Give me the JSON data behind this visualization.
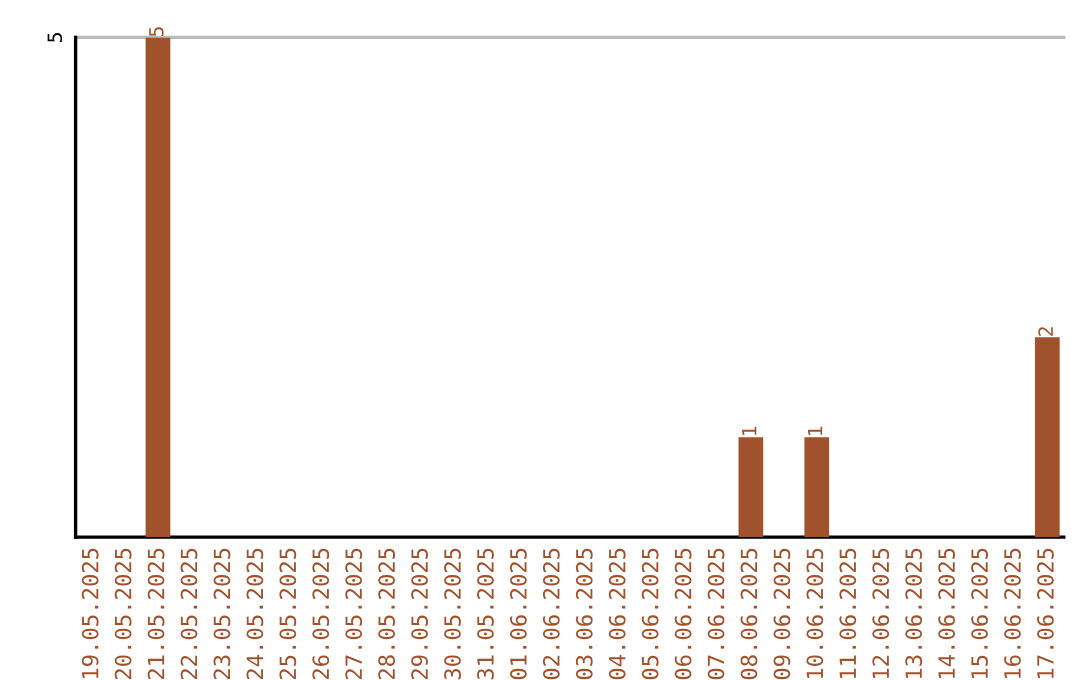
{
  "chart_data": {
    "type": "bar",
    "categories": [
      "19.05.2025",
      "20.05.2025",
      "21.05.2025",
      "22.05.2025",
      "23.05.2025",
      "24.05.2025",
      "25.05.2025",
      "26.05.2025",
      "27.05.2025",
      "28.05.2025",
      "29.05.2025",
      "30.05.2025",
      "31.05.2025",
      "01.06.2025",
      "02.06.2025",
      "03.06.2025",
      "04.06.2025",
      "05.06.2025",
      "06.06.2025",
      "07.06.2025",
      "08.06.2025",
      "09.06.2025",
      "10.06.2025",
      "11.06.2025",
      "12.06.2025",
      "13.06.2025",
      "14.06.2025",
      "15.06.2025",
      "16.06.2025",
      "17.06.2025"
    ],
    "values": [
      0,
      0,
      5,
      0,
      0,
      0,
      0,
      0,
      0,
      0,
      0,
      0,
      0,
      0,
      0,
      0,
      0,
      0,
      0,
      0,
      1,
      0,
      1,
      0,
      0,
      0,
      0,
      0,
      0,
      2
    ],
    "value_labels": [
      null,
      null,
      "5",
      null,
      null,
      null,
      null,
      null,
      null,
      null,
      null,
      null,
      null,
      null,
      null,
      null,
      null,
      null,
      null,
      null,
      "1",
      null,
      "1",
      null,
      null,
      null,
      null,
      null,
      null,
      "2"
    ],
    "color": "#a0522d",
    "ylim": [
      0,
      5
    ],
    "yticks": [
      5
    ],
    "ref_lines": [
      {
        "axis": "y",
        "value": 5,
        "color": "#bbbbbb"
      }
    ]
  }
}
